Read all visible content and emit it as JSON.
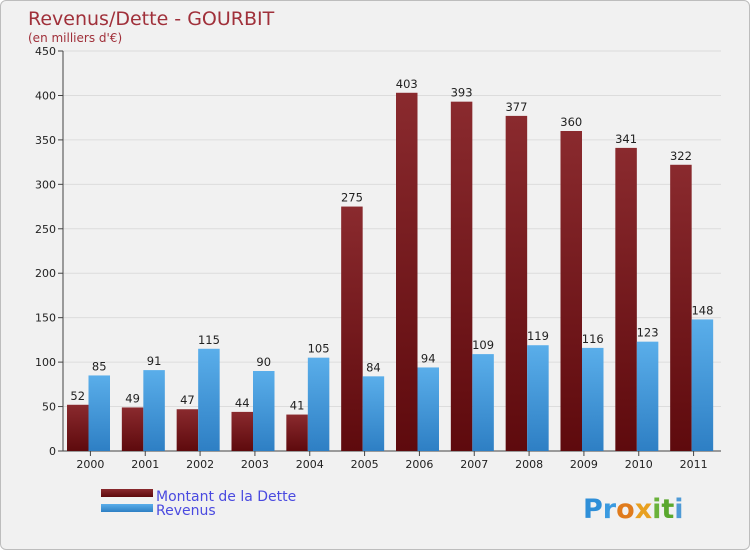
{
  "chart_data": {
    "type": "bar",
    "title": "Revenus/Dette - GOURBIT",
    "subtitle": "(en milliers d'€)",
    "categories": [
      "2000",
      "2001",
      "2002",
      "2003",
      "2004",
      "2005",
      "2006",
      "2007",
      "2008",
      "2009",
      "2010",
      "2011"
    ],
    "series": [
      {
        "name": "Montant de la Dette",
        "color": "#7b1518",
        "values": [
          52,
          49,
          47,
          44,
          41,
          275,
          403,
          393,
          377,
          360,
          341,
          322
        ]
      },
      {
        "name": "Revenus",
        "color": "#3e95dc",
        "values": [
          85,
          91,
          115,
          90,
          105,
          84,
          94,
          109,
          119,
          116,
          123,
          148
        ]
      }
    ],
    "ylim": [
      0,
      450
    ],
    "yticks": [
      0,
      50,
      100,
      150,
      200,
      250,
      300,
      350,
      400,
      450
    ],
    "grid": true,
    "legend": "bottom-left",
    "xlabel": "",
    "ylabel": ""
  },
  "logo": {
    "text": "Proxiti"
  }
}
